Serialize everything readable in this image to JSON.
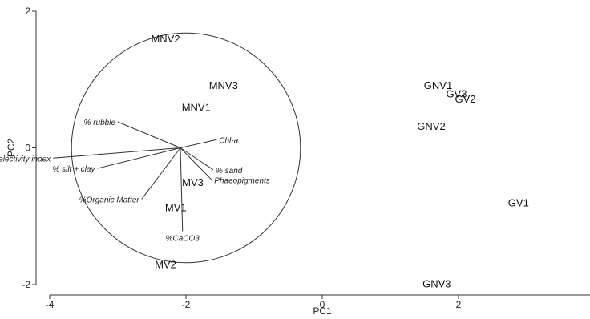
{
  "chart_data": {
    "type": "scatter",
    "title": "",
    "xlabel": "PC1",
    "ylabel": "PC2",
    "xlim": [
      -4,
      4
    ],
    "ylim": [
      -2,
      2
    ],
    "xticks": [
      -4,
      -2,
      0,
      2
    ],
    "yticks": [
      -2,
      0,
      2
    ],
    "xtick_labels": [
      "-4",
      "-2",
      "0",
      "2"
    ],
    "ytick_labels": [
      "-2",
      "0",
      "2"
    ],
    "grid": false,
    "points": [
      {
        "label": "MNV2",
        "x": -2.3,
        "y": 1.6
      },
      {
        "label": "MNV3",
        "x": -1.45,
        "y": 0.92
      },
      {
        "label": "MNV1",
        "x": -1.85,
        "y": 0.6
      },
      {
        "label": "MV3",
        "x": -1.9,
        "y": -0.5
      },
      {
        "label": "MV1",
        "x": -2.15,
        "y": -0.87
      },
      {
        "label": "MV2",
        "x": -2.3,
        "y": -1.7
      },
      {
        "label": "GNV1",
        "x": 1.7,
        "y": 0.92
      },
      {
        "label": "GV3",
        "x": 1.97,
        "y": 0.8
      },
      {
        "label": "GV2",
        "x": 2.1,
        "y": 0.72
      },
      {
        "label": "GNV2",
        "x": 1.6,
        "y": 0.32
      },
      {
        "label": "GV1",
        "x": 2.88,
        "y": -0.8
      },
      {
        "label": "GNV3",
        "x": 1.68,
        "y": -1.98
      }
    ],
    "circle": {
      "center_x": -2.0,
      "center_y": 0.0,
      "radius_x": 1.68,
      "radius_y": 1.68
    },
    "vectors": [
      {
        "label": "% rubble",
        "x": -3.0,
        "y": 0.38,
        "anchor": "end"
      },
      {
        "label": "Chl-a",
        "x": -1.55,
        "y": 0.12,
        "anchor": "start"
      },
      {
        "label": "Granulometric selectivity index",
        "x": -3.95,
        "y": -0.15,
        "anchor": "end"
      },
      {
        "label": "% silt + clay",
        "x": -3.3,
        "y": -0.3,
        "anchor": "end"
      },
      {
        "label": "% sand",
        "x": -1.6,
        "y": -0.32,
        "anchor": "start"
      },
      {
        "label": "Phaeopigments",
        "x": -1.62,
        "y": -0.47,
        "anchor": "start"
      },
      {
        "label": "%Organic Matter",
        "x": -2.65,
        "y": -0.75,
        "anchor": "end"
      },
      {
        "label": "%CaCO3",
        "x": -2.05,
        "y": -1.22,
        "anchor": "middle"
      }
    ]
  }
}
